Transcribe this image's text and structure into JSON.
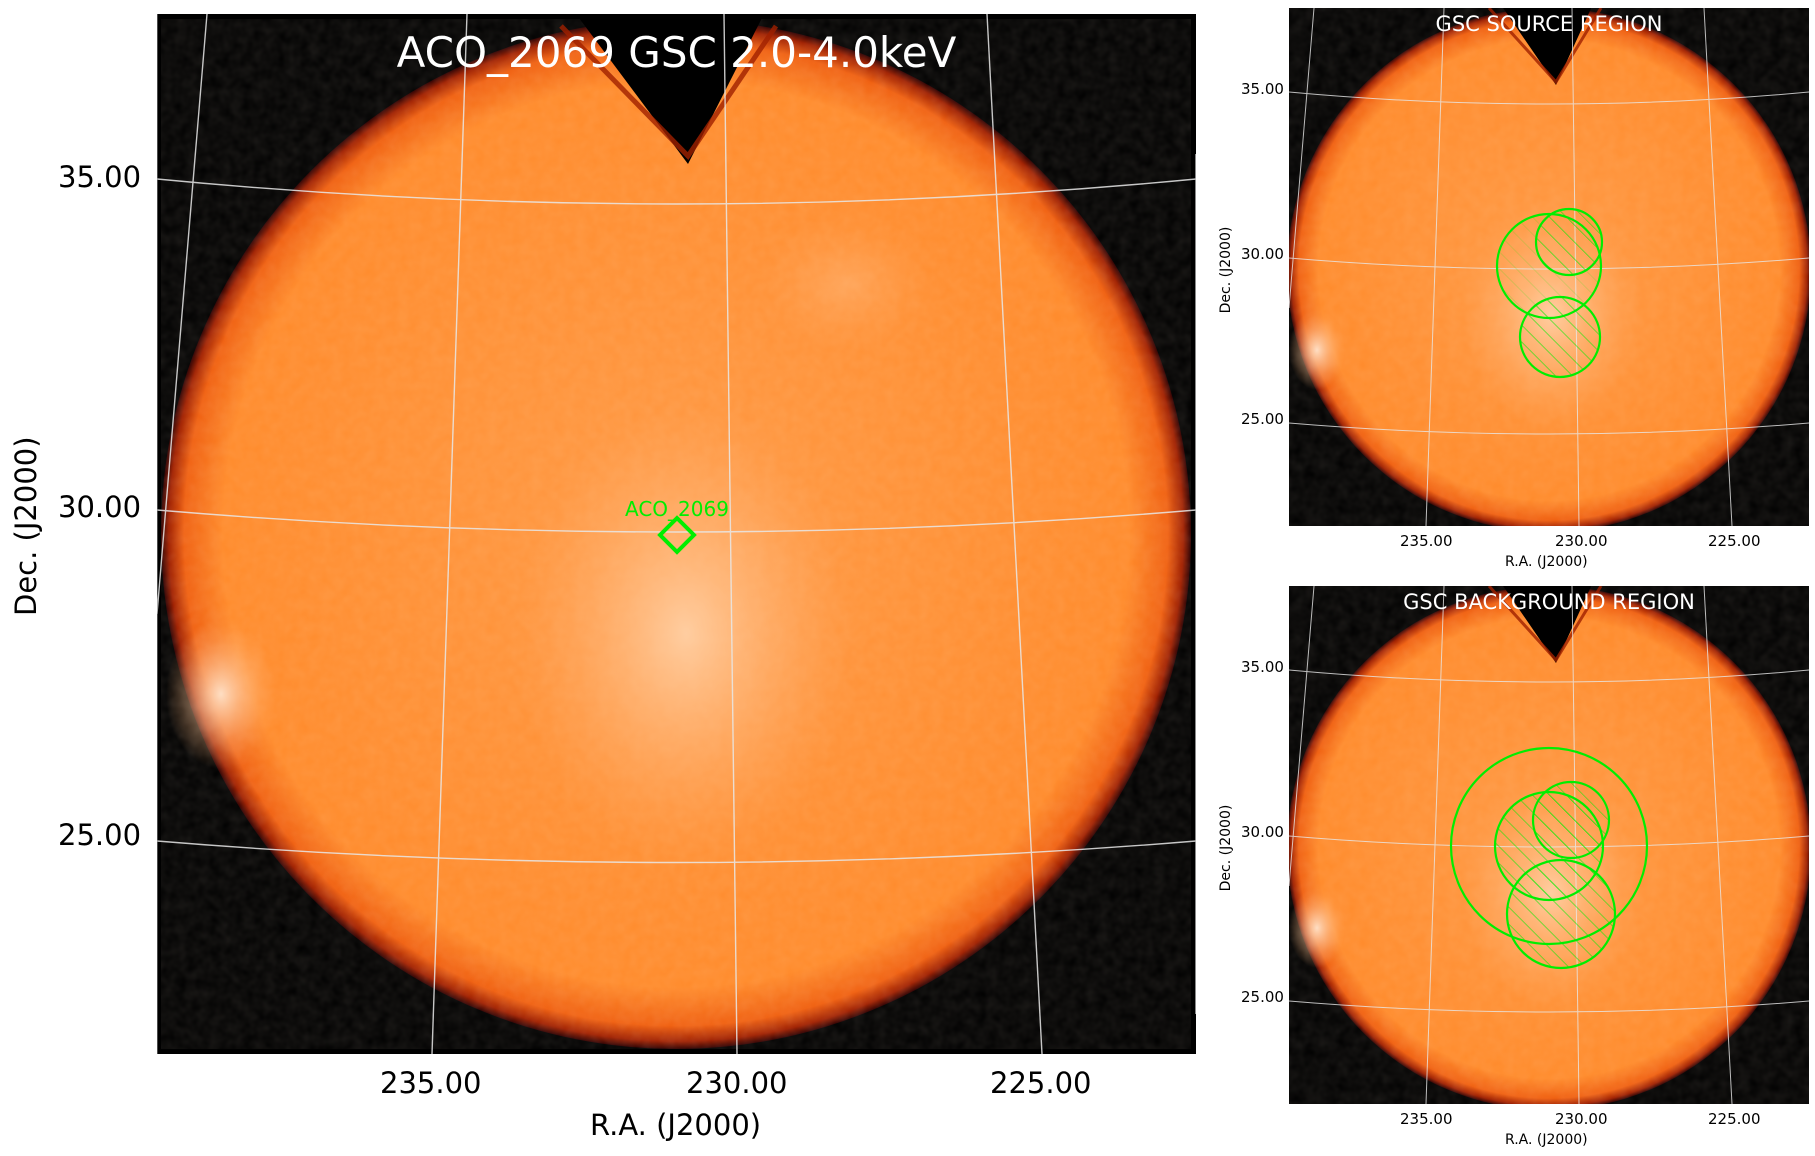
{
  "main_panel": {
    "title": "ACO_2069 GSC 2.0-4.0keV",
    "source_label": "ACO_2069",
    "xlabel": "R.A. (J2000)",
    "ylabel": "Dec. (J2000)",
    "xticks": [
      "235.00",
      "230.00",
      "225.00"
    ],
    "yticks": [
      "35.00",
      "30.00",
      "25.00"
    ]
  },
  "source_panel": {
    "title": "GSC SOURCE REGION",
    "xlabel": "R.A. (J2000)",
    "ylabel": "Dec. (J2000)",
    "xticks": [
      "235.00",
      "230.00",
      "225.00"
    ],
    "yticks": [
      "35.00",
      "30.00",
      "25.00"
    ]
  },
  "background_panel": {
    "title": "GSC BACKGROUND REGION",
    "xlabel": "R.A. (J2000)",
    "ylabel": "Dec. (J2000)",
    "xticks": [
      "235.00",
      "230.00",
      "225.00"
    ],
    "yticks": [
      "35.00",
      "30.00",
      "25.00"
    ]
  },
  "colors": {
    "background": "#000000",
    "disk": "#ff8a2a",
    "disk_edge": "#8a1a00",
    "grid": "#e8e8e8",
    "region": "#00ee00",
    "text_on_image": "#ffffff"
  }
}
